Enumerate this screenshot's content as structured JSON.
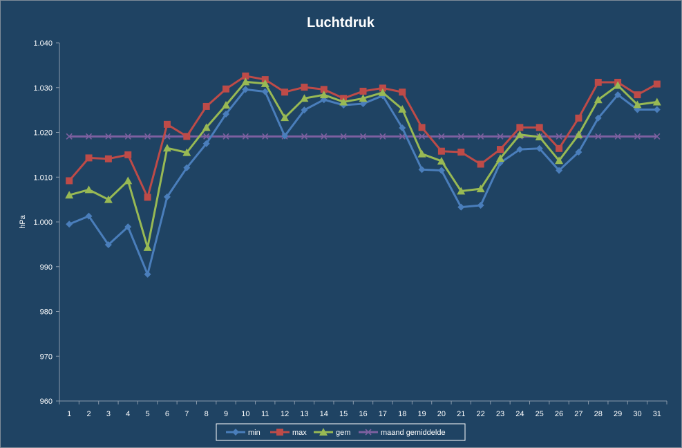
{
  "chart_data": {
    "type": "line",
    "title": "Luchtdruk",
    "xlabel": "",
    "ylabel": "hPa",
    "ylim": [
      960,
      1040
    ],
    "yticks": [
      "960",
      "970",
      "980",
      "990",
      "1.000",
      "1.010",
      "1.020",
      "1.030",
      "1.040"
    ],
    "ytick_values": [
      960,
      970,
      980,
      990,
      1000,
      1010,
      1020,
      1030,
      1040
    ],
    "categories": [
      "1",
      "2",
      "3",
      "4",
      "5",
      "6",
      "7",
      "8",
      "9",
      "10",
      "11",
      "12",
      "13",
      "14",
      "15",
      "16",
      "17",
      "18",
      "19",
      "20",
      "21",
      "22",
      "23",
      "24",
      "25",
      "26",
      "27",
      "28",
      "29",
      "30",
      "31"
    ],
    "grid": false,
    "legend_position": "bottom",
    "series": [
      {
        "name": "min",
        "color": "#4a7ebb",
        "marker": "diamond",
        "values": [
          999.5,
          1001.3,
          994.9,
          998.9,
          988.3,
          1005.6,
          1012.1,
          1017.5,
          1024.1,
          1029.6,
          1029.1,
          1019.2,
          1025.0,
          1027.3,
          1026.1,
          1026.4,
          1028.2,
          1021.0,
          1011.7,
          1011.5,
          1003.3,
          1003.7,
          1013.2,
          1016.2,
          1016.4,
          1011.5,
          1015.6,
          1023.2,
          1028.4,
          1025.1,
          1025.1
        ]
      },
      {
        "name": "max",
        "color": "#be4b48",
        "marker": "square",
        "values": [
          1009.2,
          1014.3,
          1014.1,
          1015.0,
          1005.5,
          1021.8,
          1019.1,
          1025.8,
          1029.7,
          1032.6,
          1031.8,
          1029.0,
          1030.1,
          1029.6,
          1027.6,
          1029.2,
          1029.9,
          1029.0,
          1021.1,
          1015.8,
          1015.6,
          1012.9,
          1016.2,
          1021.1,
          1021.1,
          1016.4,
          1023.2,
          1031.2,
          1031.2,
          1028.4,
          1030.8
        ]
      },
      {
        "name": "gem",
        "color": "#98b954",
        "marker": "triangle",
        "values": [
          1006.0,
          1007.2,
          1005.0,
          1009.2,
          994.3,
          1016.5,
          1015.5,
          1021.1,
          1026.1,
          1031.3,
          1030.9,
          1023.3,
          1027.6,
          1028.4,
          1026.8,
          1027.6,
          1028.9,
          1025.2,
          1015.2,
          1013.6,
          1006.9,
          1007.4,
          1014.2,
          1019.5,
          1019.0,
          1013.7,
          1019.5,
          1027.3,
          1030.5,
          1026.2,
          1026.8
        ]
      },
      {
        "name": "maand gemiddelde",
        "color": "#7d60a0",
        "marker": "x",
        "values": [
          1019.1,
          1019.1,
          1019.1,
          1019.1,
          1019.1,
          1019.1,
          1019.1,
          1019.1,
          1019.1,
          1019.1,
          1019.1,
          1019.1,
          1019.1,
          1019.1,
          1019.1,
          1019.1,
          1019.1,
          1019.1,
          1019.1,
          1019.1,
          1019.1,
          1019.1,
          1019.1,
          1019.1,
          1019.1,
          1019.1,
          1019.1,
          1019.1,
          1019.1,
          1019.1,
          1019.1
        ]
      }
    ]
  }
}
